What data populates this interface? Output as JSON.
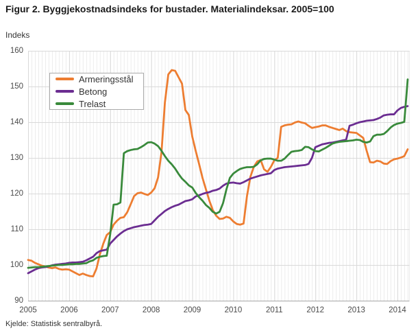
{
  "figure": {
    "title": "Figur 2. Byggjekostnadsindeks for bustader. Materialindeksar. 2005=100",
    "y_axis_title": "Indeks",
    "source": "Kjelde: Statistisk sentralbyrå."
  },
  "chart_data": {
    "type": "line",
    "title": "Figur 2. Byggjekostnadsindeks for bustader. Materialindeksar. 2005=100",
    "ylabel": "Indeks",
    "x_unit": "month",
    "x_start": "2005-01",
    "x_end": "2014-04",
    "x_tick_labels": [
      "2005",
      "2006",
      "2007",
      "2008",
      "2009",
      "2010",
      "2011",
      "2012",
      "2013",
      "2014"
    ],
    "ylim": [
      90,
      160
    ],
    "y_ticks": [
      90,
      100,
      110,
      120,
      130,
      140,
      150,
      160
    ],
    "grid": "both",
    "legend_position": "top-left-inside",
    "grid_minor_color": "#ececec",
    "grid_major_color": "#d9d9d9",
    "axis_color": "#a6a6a6",
    "series": [
      {
        "name": "Armeringsstål",
        "color": "#ed7d31",
        "values": [
          101.4,
          101.2,
          100.6,
          100.2,
          99.8,
          99.6,
          99.3,
          99.1,
          99.3,
          98.9,
          98.7,
          98.8,
          98.7,
          98.2,
          97.7,
          97.2,
          97.6,
          97.2,
          96.9,
          96.8,
          99.0,
          103.0,
          106.0,
          108.4,
          109.2,
          111.3,
          112.4,
          113.2,
          113.4,
          114.8,
          117.0,
          119.3,
          120.1,
          120.3,
          119.9,
          119.6,
          120.3,
          121.5,
          124.5,
          131.5,
          145.5,
          153.4,
          154.6,
          154.4,
          152.6,
          150.8,
          143.4,
          142.0,
          136.0,
          132.0,
          128.3,
          124.4,
          121.2,
          118.0,
          115.4,
          113.8,
          112.9,
          113.0,
          113.5,
          113.2,
          112.2,
          111.5,
          111.3,
          111.6,
          119.3,
          124.7,
          127.5,
          129.0,
          129.4,
          126.8,
          126.1,
          127.5,
          129.3,
          130.0,
          138.7,
          139.1,
          139.3,
          139.4,
          139.9,
          140.2,
          139.9,
          139.7,
          139.0,
          138.4,
          138.6,
          138.8,
          139.1,
          139.1,
          138.7,
          138.4,
          138.1,
          137.8,
          138.2,
          137.5,
          137.2,
          137.1,
          137.0,
          136.3,
          135.6,
          132.0,
          128.8,
          128.7,
          129.2,
          129.0,
          128.4,
          128.3,
          129.1,
          129.6,
          129.8,
          130.1,
          130.5,
          132.4
        ]
      },
      {
        "name": "Betong",
        "color": "#6b2d91",
        "values": [
          97.7,
          98.2,
          98.7,
          99.1,
          99.3,
          99.4,
          99.6,
          99.9,
          100.1,
          100.2,
          100.3,
          100.4,
          100.6,
          100.7,
          100.7,
          100.8,
          100.9,
          101.3,
          101.8,
          102.3,
          103.3,
          103.9,
          104.1,
          104.3,
          106.0,
          107.0,
          108.0,
          108.8,
          109.5,
          110.0,
          110.3,
          110.6,
          110.8,
          111.0,
          111.2,
          111.3,
          111.5,
          112.5,
          113.5,
          114.3,
          115.1,
          115.7,
          116.2,
          116.6,
          116.9,
          117.4,
          117.9,
          118.1,
          118.4,
          119.2,
          119.5,
          119.9,
          120.2,
          120.4,
          120.8,
          121.0,
          121.4,
          122.2,
          122.8,
          123.0,
          123.1,
          122.9,
          122.8,
          123.2,
          123.7,
          124.2,
          124.5,
          124.8,
          125.1,
          125.3,
          125.5,
          125.7,
          126.6,
          127.0,
          127.2,
          127.4,
          127.5,
          127.6,
          127.7,
          127.8,
          127.9,
          128.0,
          128.3,
          130.0,
          133.0,
          133.4,
          133.8,
          134.0,
          134.2,
          134.3,
          134.5,
          134.7,
          134.9,
          135.1,
          139.0,
          139.3,
          139.7,
          140.0,
          140.2,
          140.4,
          140.5,
          140.6,
          140.9,
          141.3,
          141.9,
          142.1,
          142.2,
          142.2,
          143.3,
          144.0,
          144.3,
          144.5
        ]
      },
      {
        "name": "Trelast",
        "color": "#398a3b",
        "values": [
          99.2,
          99.3,
          99.4,
          99.4,
          99.5,
          99.6,
          99.7,
          99.8,
          99.9,
          100.0,
          100.0,
          100.1,
          100.2,
          100.2,
          100.3,
          100.3,
          100.4,
          100.5,
          101.0,
          101.3,
          102.0,
          102.3,
          102.5,
          102.6,
          108.5,
          116.9,
          117.0,
          117.5,
          131.3,
          131.9,
          132.2,
          132.4,
          132.5,
          133.0,
          133.6,
          134.3,
          134.4,
          134.0,
          133.3,
          132.0,
          130.5,
          129.2,
          128.2,
          127.0,
          125.5,
          124.2,
          123.3,
          122.3,
          121.7,
          120.2,
          119.0,
          118.0,
          116.8,
          116.0,
          114.9,
          114.4,
          114.9,
          117.3,
          121.2,
          124.4,
          125.6,
          126.3,
          126.9,
          127.2,
          127.4,
          127.4,
          127.5,
          128.2,
          129.3,
          129.7,
          129.8,
          129.8,
          129.5,
          129.2,
          129.2,
          129.8,
          130.8,
          131.7,
          131.9,
          132.0,
          132.2,
          133.1,
          133.0,
          132.4,
          131.9,
          131.8,
          132.3,
          132.8,
          133.4,
          134.0,
          134.3,
          134.5,
          134.6,
          134.7,
          134.8,
          134.9,
          135.1,
          135.0,
          134.5,
          134.3,
          134.6,
          136.1,
          136.5,
          136.5,
          136.7,
          137.5,
          138.5,
          139.2,
          139.6,
          139.8,
          140.1,
          152.0
        ]
      }
    ]
  }
}
